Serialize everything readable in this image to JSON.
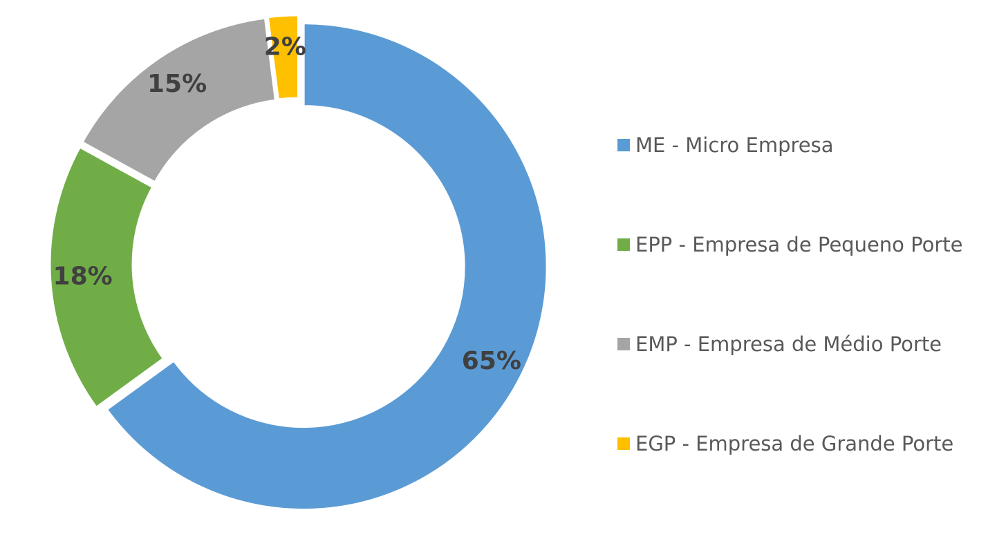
{
  "chart_data": {
    "type": "donut",
    "categories": [
      "ME - Micro Empresa",
      "EPP - Empresa de Pequeno Porte",
      "EMP - Empresa de Médio Porte",
      "EGP - Empresa de Grande Porte"
    ],
    "values": [
      65,
      18,
      15,
      2
    ],
    "value_labels": [
      "65%",
      "18%",
      "15%",
      "2%"
    ],
    "colors": [
      "#5b9bd5",
      "#70ad47",
      "#a5a5a5",
      "#ffc000"
    ],
    "legend": "right"
  }
}
